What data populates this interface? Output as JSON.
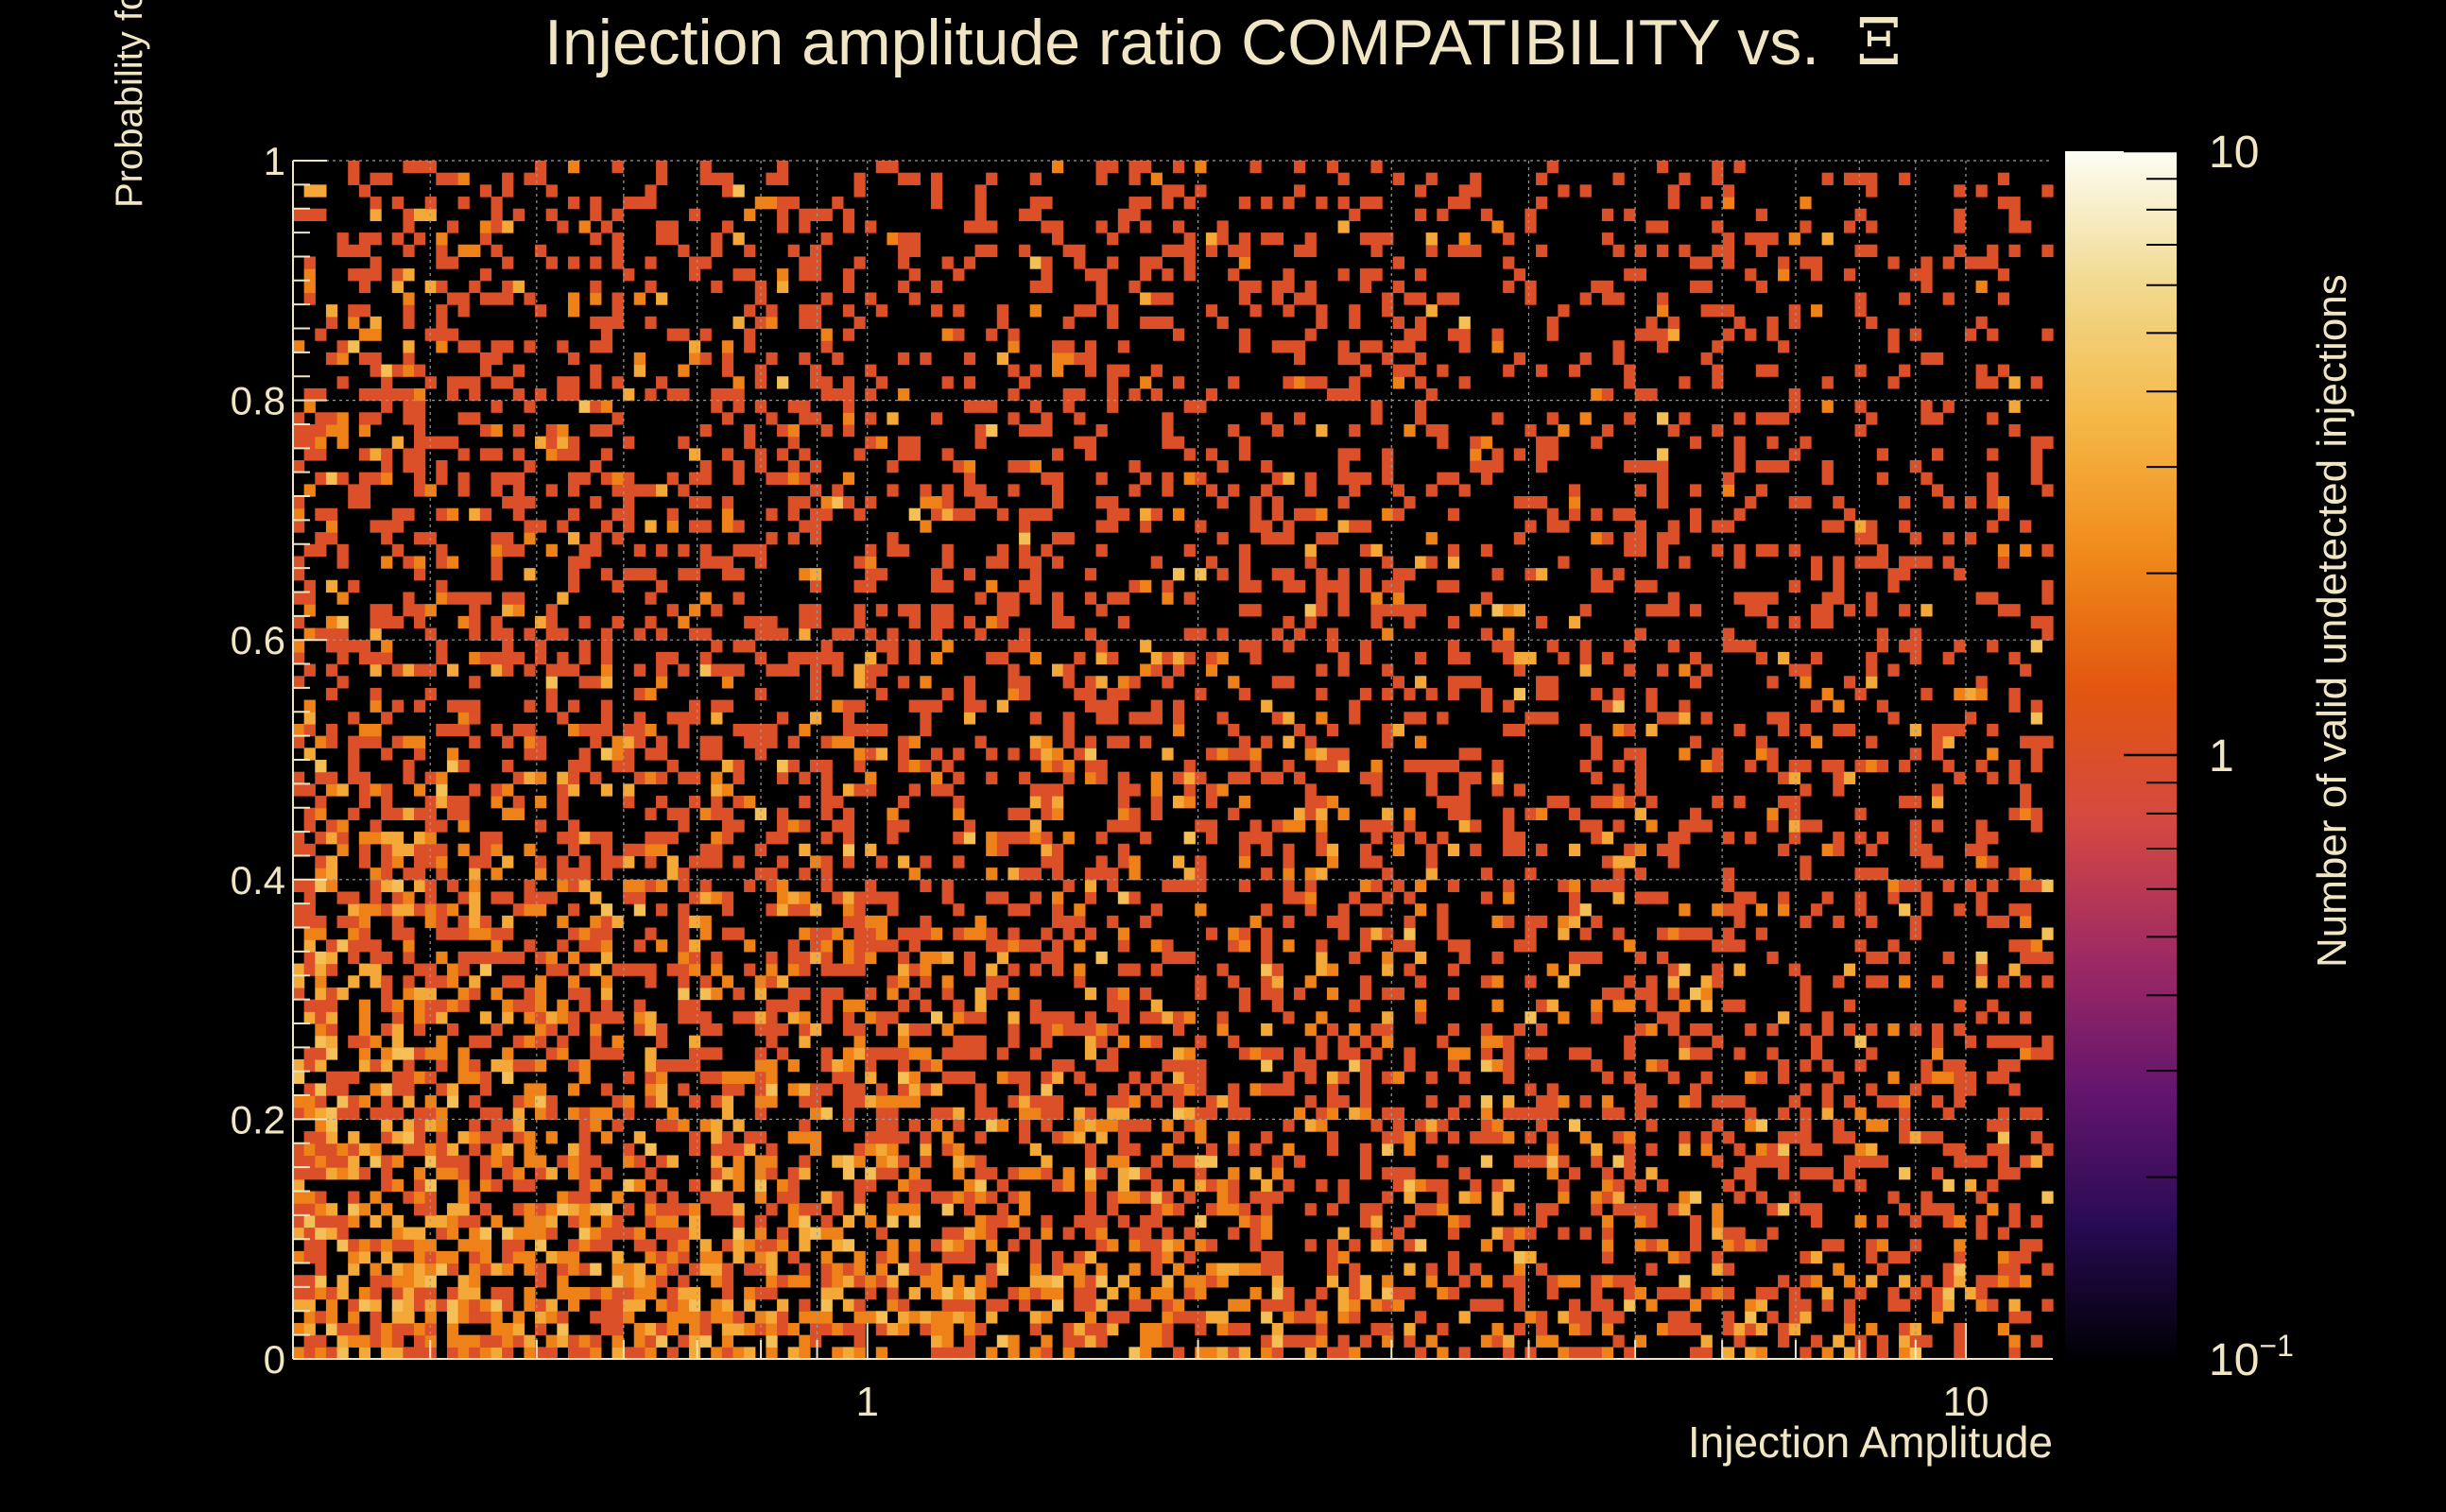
{
  "chart_data": {
    "type": "heatmap",
    "title_text": "Injection amplitude ratio COMPATIBILITY vs.",
    "title_symbol": "Ξ",
    "xlabel": "Injection Amplitude",
    "ylabel": "Probability for event amplitude ratios to be compatible",
    "zlabel": "Number of valid undetected injections",
    "x_scale": "log",
    "xlim": [
      0.3,
      12
    ],
    "ylim": [
      0,
      1
    ],
    "z_scale": "log",
    "zlim": [
      0.1,
      10
    ],
    "x_ticks": [
      {
        "value": 1,
        "label": "1"
      },
      {
        "value": 10,
        "label": "10"
      }
    ],
    "y_ticks": [
      {
        "value": 0,
        "label": "0"
      },
      {
        "value": 0.2,
        "label": "0.2"
      },
      {
        "value": 0.4,
        "label": "0.4"
      },
      {
        "value": 0.6,
        "label": "0.6"
      },
      {
        "value": 0.8,
        "label": "0.8"
      },
      {
        "value": 1,
        "label": "1"
      }
    ],
    "z_ticks": [
      {
        "value": 0.1,
        "base": "10",
        "exp": "−1"
      },
      {
        "value": 1,
        "base": "1",
        "exp": ""
      },
      {
        "value": 10,
        "base": "10",
        "exp": ""
      }
    ],
    "grid": true,
    "bins": {
      "nx": 160,
      "ny": 100
    },
    "density": {
      "max_fill_probability": 0.75,
      "y_decay": 1.2,
      "x_decay": 0.45,
      "peak_counts": 4
    },
    "colormap": [
      "#000004",
      "#280b54",
      "#65156e",
      "#9f2a63",
      "#d44842",
      "#e2560f",
      "#f08a1a",
      "#f5b847",
      "#f1d98e",
      "#fcfdf4"
    ]
  }
}
